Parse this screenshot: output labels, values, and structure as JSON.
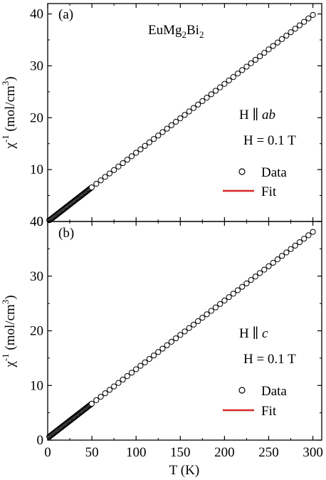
{
  "chart_data": [
    {
      "type": "scatter",
      "panel_label": "(a)",
      "title": "EuMg2Bi2",
      "ylabel": "χ-1 (mol/cm3)",
      "xlabel": "",
      "xlim": [
        0,
        310
      ],
      "ylim": [
        0,
        42
      ],
      "xticks": [
        "0",
        "50",
        "100",
        "150",
        "200",
        "250",
        "300"
      ],
      "yticks": [
        "0",
        "10",
        "20",
        "30",
        "40"
      ],
      "show_x_ticklabels": false,
      "annotations": {
        "field_direction": "ab",
        "field_value": "H = 0.1 T"
      },
      "legend": {
        "position": "right",
        "data_label": "Data",
        "fit_label": "Fit"
      },
      "colors": {
        "fit": "#d62728",
        "marker": "#000000"
      },
      "series": [
        {
          "name": "Data",
          "style": "open-circle",
          "x_range": [
            1.8,
            300
          ],
          "y_range": [
            0.25,
            39.8
          ],
          "dense_below": 50
        },
        {
          "name": "Fit",
          "style": "line",
          "x": [
            0,
            300
          ],
          "y": [
            -0.04,
            39.8
          ]
        }
      ]
    },
    {
      "type": "scatter",
      "panel_label": "(b)",
      "title": "",
      "ylabel": "χ-1 (mol/cm3)",
      "xlabel": "T (K)",
      "xlim": [
        0,
        310
      ],
      "ylim": [
        0,
        40
      ],
      "xticks": [
        "0",
        "50",
        "100",
        "150",
        "200",
        "250",
        "300"
      ],
      "yticks": [
        "0",
        "10",
        "20",
        "30",
        "40"
      ],
      "show_x_ticklabels": true,
      "annotations": {
        "field_direction": "c",
        "field_value": "H = 0.1 T"
      },
      "legend": {
        "position": "right",
        "data_label": "Data",
        "fit_label": "Fit"
      },
      "colors": {
        "fit": "#d62728",
        "marker": "#000000"
      },
      "series": [
        {
          "name": "Data",
          "style": "open-circle",
          "x_range": [
            1.8,
            300
          ],
          "y_range": [
            0.6,
            38.1
          ],
          "dense_below": 50
        },
        {
          "name": "Fit",
          "style": "line",
          "x": [
            0,
            300
          ],
          "y": [
            0.4,
            38.1
          ]
        }
      ]
    }
  ]
}
